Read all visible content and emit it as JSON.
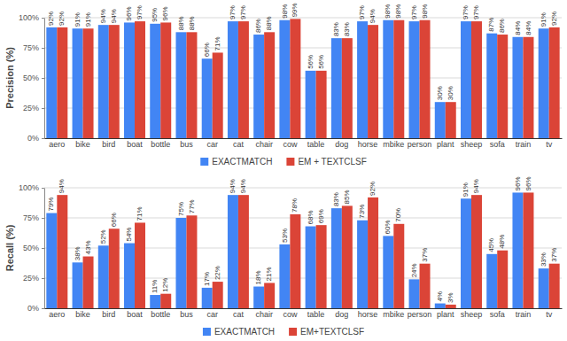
{
  "chart_data": [
    {
      "type": "bar",
      "y_label": "Precision (%)",
      "categories": [
        "aero",
        "bike",
        "bird",
        "boat",
        "bottle",
        "bus",
        "car",
        "cat",
        "chair",
        "cow",
        "table",
        "dog",
        "horse",
        "mbike",
        "person",
        "plant",
        "sheep",
        "sofa",
        "train",
        "tv"
      ],
      "series": [
        {
          "name": "EXACTMATCH",
          "color": "#4285f4",
          "values": [
            92,
            91,
            94,
            96,
            95,
            88,
            66,
            97,
            86,
            98,
            56,
            83,
            97,
            98,
            97,
            30,
            97,
            87,
            84,
            91
          ],
          "value_labels": [
            "92%",
            "91%",
            "94%",
            "96%",
            "95%",
            "88%",
            "66%",
            "97%",
            "86%",
            "98%",
            "56%",
            "83%",
            "97%",
            "98%",
            "97%",
            "30%",
            "97%",
            "87%",
            "84%",
            "91%"
          ]
        },
        {
          "name": "EM + TEXTCLSF",
          "color": "#db4437",
          "values": [
            92,
            91,
            94,
            97,
            96,
            88,
            71,
            97,
            88,
            99,
            56,
            83,
            94,
            98,
            98,
            30,
            97,
            86,
            84,
            92
          ],
          "value_labels": [
            "92%",
            "91%",
            "94%",
            "97%",
            "96%",
            "88%",
            "71%",
            "97%",
            "88%",
            "99%",
            "56%",
            "83%",
            "94%",
            "98%",
            "98%",
            "30%",
            "97%",
            "86%",
            "84%",
            "92%"
          ]
        }
      ],
      "ylim": [
        0,
        100
      ],
      "yticks": [
        {
          "value": 0,
          "label": "0%"
        },
        {
          "value": 25,
          "label": "25%"
        },
        {
          "value": 50,
          "label": "50%"
        },
        {
          "value": 75,
          "label": "75%"
        },
        {
          "value": 100,
          "label": "100%"
        }
      ],
      "grid": true,
      "data_labels": true,
      "legend": "bottom"
    },
    {
      "type": "bar",
      "y_label": "Recall (%)",
      "categories": [
        "aero",
        "bike",
        "bird",
        "boat",
        "bottle",
        "bus",
        "car",
        "cat",
        "chair",
        "cow",
        "table",
        "dog",
        "horse",
        "mbike",
        "person",
        "plant",
        "sheep",
        "sofa",
        "train",
        "tv"
      ],
      "series": [
        {
          "name": "EXACTMATCH",
          "color": "#4285f4",
          "values": [
            79,
            38,
            52,
            54,
            11,
            75,
            17,
            94,
            18,
            53,
            68,
            83,
            73,
            60,
            24,
            4,
            91,
            45,
            96,
            33
          ],
          "value_labels": [
            "79%",
            "38%",
            "52%",
            "54%",
            "11%",
            "75%",
            "17%",
            "94%",
            "18%",
            "53%",
            "68%",
            "83%",
            "73%",
            "60%",
            "24%",
            "4%",
            "91%",
            "45%",
            "96%",
            "33%"
          ]
        },
        {
          "name": "EM+TEXTCLSF",
          "color": "#db4437",
          "values": [
            94,
            43,
            66,
            71,
            12,
            77,
            22,
            94,
            21,
            78,
            69,
            85,
            92,
            70,
            37,
            3,
            94,
            48,
            96,
            37
          ],
          "value_labels": [
            "94%",
            "43%",
            "66%",
            "71%",
            "12%",
            "77%",
            "22%",
            "94%",
            "21%",
            "78%",
            "69%",
            "85%",
            "92%",
            "70%",
            "37%",
            "3%",
            "94%",
            "48%",
            "96%",
            "37%"
          ]
        }
      ],
      "ylim": [
        0,
        100
      ],
      "yticks": [
        {
          "value": 0,
          "label": "0%"
        },
        {
          "value": 25,
          "label": "25%"
        },
        {
          "value": 50,
          "label": "50%"
        },
        {
          "value": 75,
          "label": "75%"
        },
        {
          "value": 100,
          "label": "100%"
        }
      ],
      "grid": true,
      "data_labels": true,
      "legend": "bottom"
    }
  ]
}
